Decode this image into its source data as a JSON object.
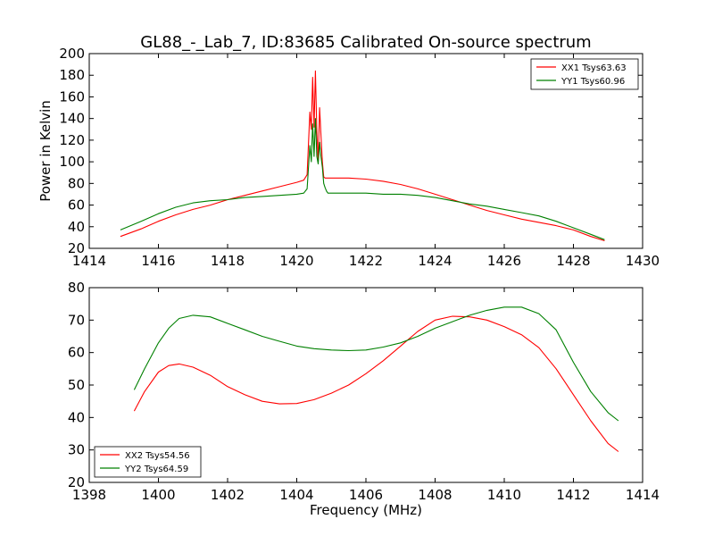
{
  "chart_data": [
    {
      "type": "line",
      "title": "GL88_-_Lab_7, ID:83685 Calibrated On-source spectrum",
      "xlabel": "",
      "ylabel": "Power in Kelvin",
      "xlim": [
        1414,
        1430
      ],
      "ylim": [
        20,
        200
      ],
      "xticks": [
        1414,
        1416,
        1418,
        1420,
        1422,
        1424,
        1426,
        1428,
        1430
      ],
      "yticks": [
        20,
        40,
        60,
        80,
        100,
        120,
        140,
        160,
        180,
        200
      ],
      "grid": false,
      "legend_position": "top-right",
      "series": [
        {
          "name": "XX1 Tsys63.63",
          "color": "#ff0000",
          "x": [
            1414.9,
            1415.5,
            1416.0,
            1416.5,
            1417.0,
            1417.5,
            1418.0,
            1418.5,
            1419.0,
            1419.5,
            1420.0,
            1420.2,
            1420.3,
            1420.38,
            1420.42,
            1420.46,
            1420.5,
            1420.54,
            1420.58,
            1420.62,
            1420.66,
            1420.7,
            1420.74,
            1420.78,
            1420.82,
            1420.86,
            1420.9,
            1421.0,
            1421.2,
            1421.5,
            1422.0,
            1422.5,
            1423.0,
            1423.5,
            1424.0,
            1424.5,
            1425.0,
            1425.5,
            1426.0,
            1426.5,
            1427.0,
            1427.5,
            1428.0,
            1428.5,
            1428.9
          ],
          "y": [
            31,
            38,
            45,
            51,
            56,
            60,
            65,
            69,
            73,
            77,
            81,
            83,
            88,
            146,
            130,
            178,
            132,
            184,
            128,
            100,
            150,
            125,
            100,
            86,
            85,
            85,
            85,
            85,
            85,
            85,
            84,
            82,
            79,
            75,
            70,
            65,
            60,
            55,
            51,
            47,
            44,
            41,
            37,
            31,
            27
          ]
        },
        {
          "name": "YY1 Tsys60.96",
          "color": "#008000",
          "x": [
            1414.9,
            1415.5,
            1416.0,
            1416.5,
            1417.0,
            1417.5,
            1418.0,
            1418.5,
            1419.0,
            1419.5,
            1420.0,
            1420.2,
            1420.3,
            1420.38,
            1420.42,
            1420.46,
            1420.5,
            1420.54,
            1420.58,
            1420.62,
            1420.66,
            1420.7,
            1420.74,
            1420.78,
            1420.82,
            1420.86,
            1420.9,
            1421.0,
            1421.2,
            1421.5,
            1422.0,
            1422.5,
            1423.0,
            1423.5,
            1424.0,
            1424.5,
            1425.0,
            1425.5,
            1426.0,
            1426.5,
            1427.0,
            1427.5,
            1428.0,
            1428.5,
            1428.9
          ],
          "y": [
            37,
            45,
            52,
            58,
            62,
            64,
            65,
            67,
            68,
            69,
            70,
            71,
            75,
            115,
            100,
            135,
            105,
            140,
            105,
            98,
            118,
            105,
            95,
            80,
            76,
            73,
            71,
            71,
            71,
            71,
            71,
            70,
            70,
            69,
            67,
            64,
            61,
            59,
            56,
            53,
            50,
            45,
            39,
            33,
            28
          ]
        }
      ]
    },
    {
      "type": "line",
      "title": "",
      "xlabel": "Frequency (MHz)",
      "ylabel": "",
      "xlim": [
        1398,
        1414
      ],
      "ylim": [
        20,
        80
      ],
      "xticks": [
        1398,
        1400,
        1402,
        1404,
        1406,
        1408,
        1410,
        1412,
        1414
      ],
      "yticks": [
        20,
        30,
        40,
        50,
        60,
        70,
        80
      ],
      "grid": false,
      "legend_position": "bottom-left",
      "series": [
        {
          "name": "XX2 Tsys54.56",
          "color": "#ff0000",
          "x": [
            1399.3,
            1399.6,
            1400.0,
            1400.3,
            1400.6,
            1401.0,
            1401.5,
            1402.0,
            1402.5,
            1403.0,
            1403.5,
            1404.0,
            1404.5,
            1405.0,
            1405.5,
            1406.0,
            1406.5,
            1407.0,
            1407.5,
            1408.0,
            1408.5,
            1409.0,
            1409.5,
            1410.0,
            1410.5,
            1411.0,
            1411.5,
            1412.0,
            1412.5,
            1413.0,
            1413.3
          ],
          "y": [
            42,
            48,
            54,
            56,
            56.5,
            55.5,
            53,
            49.5,
            47,
            45,
            44.2,
            44.3,
            45.5,
            47.5,
            50,
            53.5,
            57.5,
            62,
            66.5,
            70,
            71.2,
            71,
            70,
            68,
            65.5,
            61.5,
            55,
            47,
            39,
            32,
            29.5
          ]
        },
        {
          "name": "YY2 Tsys64.59",
          "color": "#008000",
          "x": [
            1399.3,
            1399.6,
            1400.0,
            1400.3,
            1400.6,
            1401.0,
            1401.5,
            1402.0,
            1402.5,
            1403.0,
            1403.5,
            1404.0,
            1404.5,
            1405.0,
            1405.5,
            1406.0,
            1406.5,
            1407.0,
            1407.5,
            1408.0,
            1408.5,
            1409.0,
            1409.5,
            1410.0,
            1410.5,
            1411.0,
            1411.5,
            1412.0,
            1412.5,
            1413.0,
            1413.3
          ],
          "y": [
            48.5,
            55,
            63,
            67.5,
            70.5,
            71.5,
            71,
            69,
            67,
            65,
            63.5,
            62,
            61.2,
            60.8,
            60.6,
            60.8,
            61.7,
            63,
            65,
            67.5,
            69.5,
            71.5,
            73,
            74,
            74,
            72,
            67,
            57,
            48,
            41.5,
            39
          ]
        }
      ]
    }
  ]
}
